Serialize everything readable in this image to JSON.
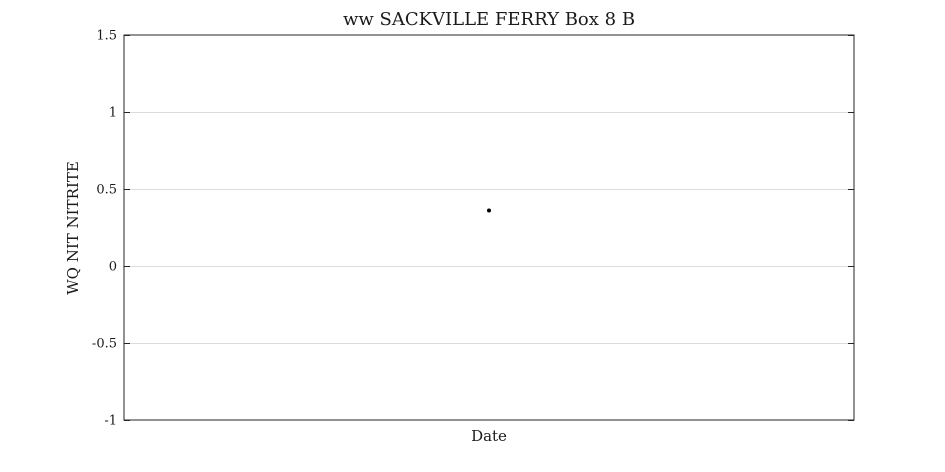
{
  "chart_data": {
    "type": "scatter",
    "title": "ww SACKVILLE FERRY Box 8 B",
    "xlabel": "Date",
    "ylabel": "WQ NIT NITRITE",
    "ylim": [
      -1,
      1.5
    ],
    "yticks": [
      -1,
      -0.5,
      0,
      0.5,
      1,
      1.5
    ],
    "ytick_labels": [
      "-1",
      "-0.5",
      "0",
      "0.5",
      "1",
      "1.5"
    ],
    "grid": true,
    "series": [
      {
        "points": [
          {
            "y": 0.36
          }
        ]
      }
    ],
    "colors": {
      "marker": "#000000",
      "grid": "#dcdcdc",
      "axis": "#262626"
    }
  }
}
